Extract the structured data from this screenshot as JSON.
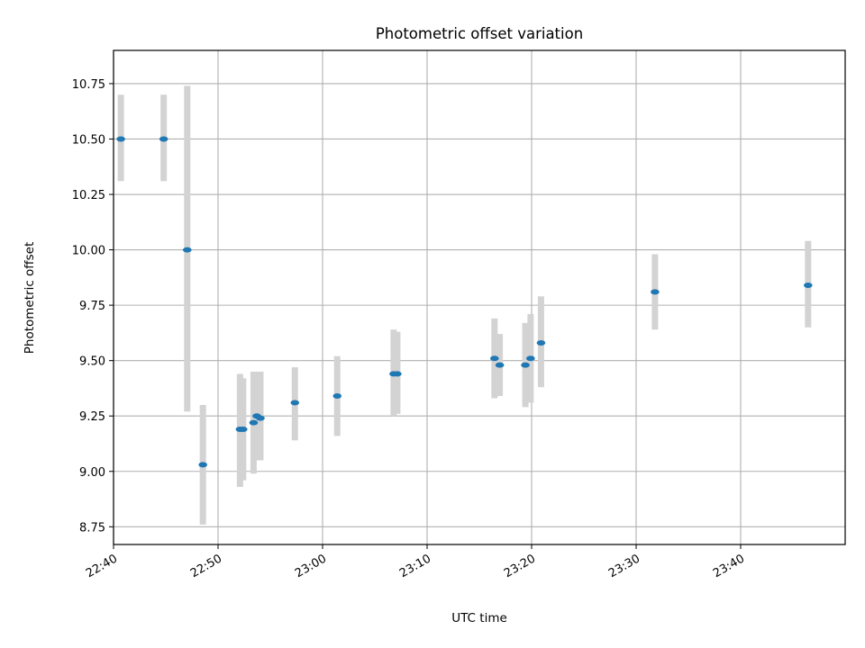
{
  "chart_data": {
    "type": "scatter",
    "title": "Photometric offset variation",
    "xlabel": "UTC time",
    "ylabel": "Photometric offset",
    "grid": true,
    "ylim": [
      8.67,
      10.9
    ],
    "xlim": [
      "22:40",
      "23:50"
    ],
    "x_ticks": [
      "22:40",
      "22:50",
      "23:00",
      "23:10",
      "23:20",
      "23:30",
      "23:40"
    ],
    "y_ticks": [
      "8.75",
      "9.00",
      "9.25",
      "9.50",
      "9.75",
      "10.00",
      "10.25",
      "10.50",
      "10.75"
    ],
    "point_color": "#1f77b4",
    "errorbar_color": "#d3d3d3",
    "points": [
      {
        "x": "22:40:42",
        "y": 10.5,
        "low": 10.31,
        "high": 10.7
      },
      {
        "x": "22:44:48",
        "y": 10.5,
        "low": 10.31,
        "high": 10.7
      },
      {
        "x": "22:47:03",
        "y": 10.0,
        "low": 9.27,
        "high": 10.74
      },
      {
        "x": "22:48:33",
        "y": 9.03,
        "low": 8.76,
        "high": 9.3
      },
      {
        "x": "22:52:06",
        "y": 9.19,
        "low": 8.93,
        "high": 9.44
      },
      {
        "x": "22:52:24",
        "y": 9.19,
        "low": 8.96,
        "high": 9.42
      },
      {
        "x": "22:53:24",
        "y": 9.22,
        "low": 8.99,
        "high": 9.45
      },
      {
        "x": "22:53:42",
        "y": 9.25,
        "low": 9.05,
        "high": 9.45
      },
      {
        "x": "22:54:03",
        "y": 9.24,
        "low": 9.05,
        "high": 9.45
      },
      {
        "x": "22:57:21",
        "y": 9.31,
        "low": 9.14,
        "high": 9.47
      },
      {
        "x": "23:01:24",
        "y": 9.34,
        "low": 9.16,
        "high": 9.52
      },
      {
        "x": "23:06:48",
        "y": 9.44,
        "low": 9.25,
        "high": 9.64
      },
      {
        "x": "23:07:09",
        "y": 9.44,
        "low": 9.26,
        "high": 9.63
      },
      {
        "x": "23:16:27",
        "y": 9.51,
        "low": 9.33,
        "high": 9.69
      },
      {
        "x": "23:16:57",
        "y": 9.48,
        "low": 9.34,
        "high": 9.62
      },
      {
        "x": "23:19:24",
        "y": 9.48,
        "low": 9.29,
        "high": 9.67
      },
      {
        "x": "23:19:54",
        "y": 9.51,
        "low": 9.31,
        "high": 9.71
      },
      {
        "x": "23:20:54",
        "y": 9.58,
        "low": 9.38,
        "high": 9.79
      },
      {
        "x": "23:31:48",
        "y": 9.81,
        "low": 9.64,
        "high": 9.98
      },
      {
        "x": "23:46:27",
        "y": 9.84,
        "low": 9.65,
        "high": 10.04
      }
    ]
  }
}
